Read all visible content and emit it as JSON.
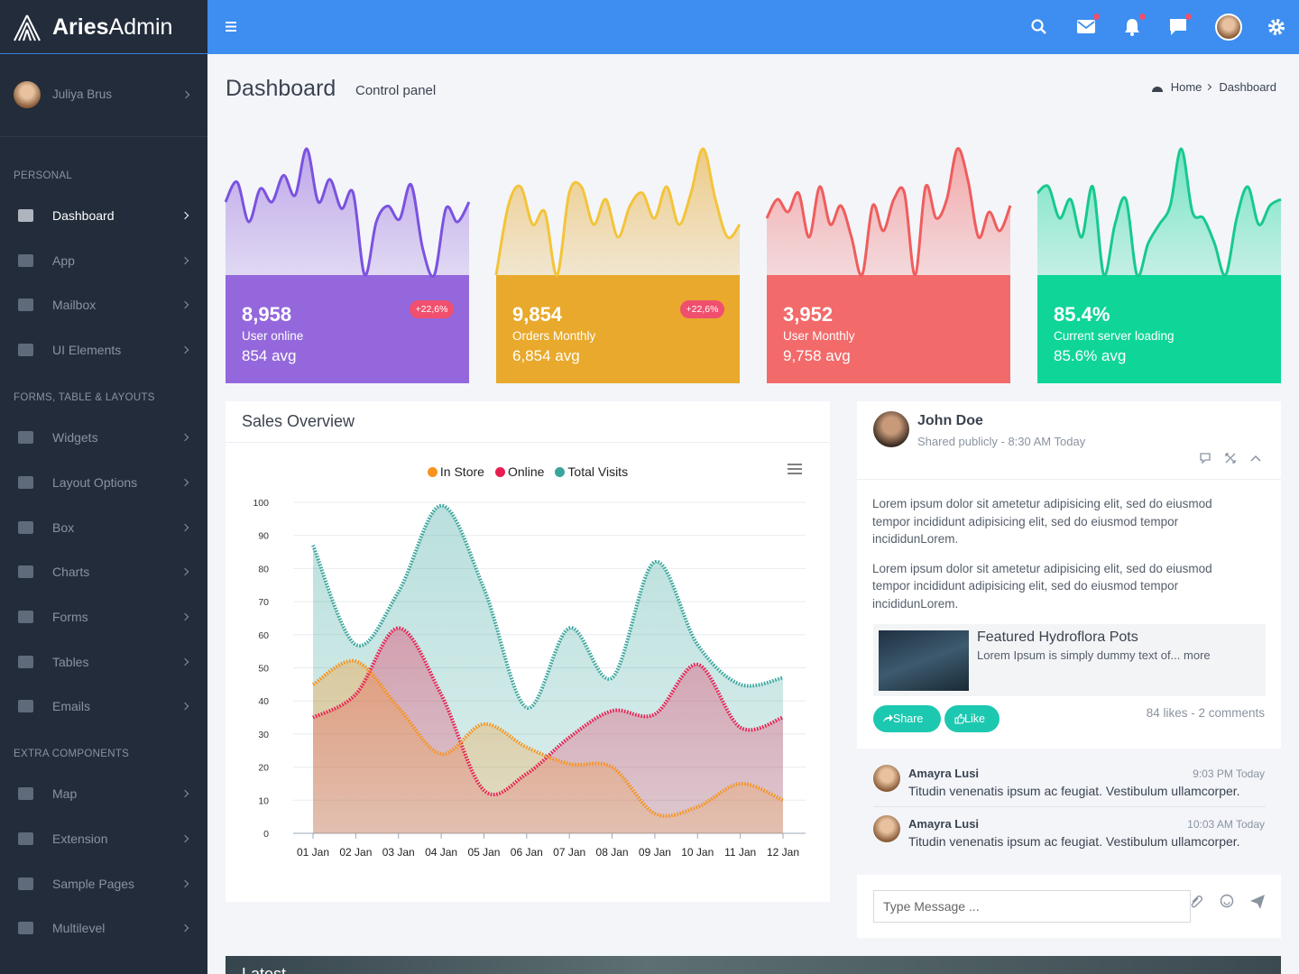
{
  "brand": {
    "bold": "Aries",
    "light": "Admin"
  },
  "user": {
    "name": "Juliya Brus"
  },
  "sidebar": {
    "sections": [
      {
        "heading": "PERSONAL",
        "items": [
          "Dashboard",
          "App",
          "Mailbox",
          "UI Elements"
        ]
      },
      {
        "heading": "FORMS, TABLE & LAYOUTS",
        "items": [
          "Widgets",
          "Layout Options",
          "Box",
          "Charts",
          "Forms",
          "Tables",
          "Emails"
        ]
      },
      {
        "heading": "EXTRA COMPONENTS",
        "items": [
          "Map",
          "Extension",
          "Sample Pages",
          "Multilevel"
        ]
      }
    ]
  },
  "page_header": {
    "title": "Dashboard",
    "subtitle": "Control panel",
    "breadcrumb": [
      "Home",
      "Dashboard"
    ]
  },
  "stats": [
    {
      "value": "8,958",
      "label": "User online",
      "avg": "854 avg",
      "badge": "+22,6%",
      "color": "#9468dc",
      "line_color": "#7b52e0",
      "sparkline": [
        55,
        70,
        40,
        65,
        55,
        75,
        60,
        95,
        55,
        72,
        50,
        62,
        0,
        40,
        52,
        42,
        68,
        20,
        0,
        50,
        40,
        55
      ]
    },
    {
      "value": "9,854",
      "label": "Orders Monthly",
      "avg": "6,854 avg",
      "badge": "+22,6%",
      "color": "#e8a92c",
      "line_color": "#f3c43a",
      "sparkline": [
        0,
        55,
        70,
        40,
        50,
        0,
        65,
        70,
        40,
        60,
        30,
        55,
        65,
        45,
        70,
        40,
        65,
        100,
        60,
        30,
        40
      ]
    },
    {
      "value": "3,952",
      "label": "User Monthly",
      "avg": "9,758 avg",
      "badge": null,
      "color": "#f36a6a",
      "line_color": "#ef5d5d",
      "sparkline": [
        45,
        60,
        50,
        65,
        30,
        70,
        40,
        55,
        30,
        0,
        55,
        35,
        60,
        65,
        0,
        70,
        45,
        60,
        100,
        75,
        30,
        50,
        35,
        55
      ]
    },
    {
      "value": "85.4%",
      "label": "Current server loading",
      "avg": "85.6% avg",
      "badge": null,
      "color": "#0fd698",
      "line_color": "#17c98d",
      "sparkline": [
        65,
        70,
        45,
        60,
        30,
        70,
        0,
        40,
        60,
        0,
        25,
        40,
        55,
        100,
        50,
        45,
        25,
        0,
        45,
        70,
        40,
        55,
        60
      ]
    }
  ],
  "chart_data": {
    "type": "line",
    "title": "Sales Overview",
    "categories": [
      "01 Jan",
      "02 Jan",
      "03 Jan",
      "04 Jan",
      "05 Jan",
      "06 Jan",
      "07 Jan",
      "08 Jan",
      "09 Jan",
      "10 Jan",
      "11 Jan",
      "12 Jan"
    ],
    "series": [
      {
        "name": "In Store",
        "color": "#f7931e",
        "values": [
          45,
          52,
          38,
          24,
          33,
          26,
          21,
          20,
          6,
          8,
          15,
          10
        ]
      },
      {
        "name": "Online",
        "color": "#e91e50",
        "values": [
          35,
          42,
          62,
          42,
          13,
          18,
          29,
          37,
          36,
          51,
          32,
          35
        ]
      },
      {
        "name": "Total Visits",
        "color": "#39a59c",
        "values": [
          87,
          57,
          73,
          99,
          74,
          38,
          62,
          47,
          82,
          57,
          45,
          47
        ]
      }
    ],
    "ylim": [
      0,
      100
    ],
    "yticks": [
      0,
      10,
      20,
      30,
      40,
      50,
      60,
      70,
      80,
      90,
      100
    ],
    "grid": true,
    "legend": "top"
  },
  "post": {
    "author": "John Doe",
    "meta": "Shared publicly - 8:30 AM Today",
    "paragraphs": [
      "Lorem ipsum dolor sit ametetur adipisicing elit, sed do eiusmod tempor incididunt adipisicing elit, sed do eiusmod tempor incididunLorem.",
      "Lorem ipsum dolor sit ametetur adipisicing elit, sed do eiusmod tempor incididunt adipisicing elit, sed do eiusmod tempor incididunLorem."
    ],
    "featured": {
      "title": "Featured Hydroflora Pots",
      "text": "Lorem Ipsum is simply dummy text of... more"
    },
    "buttons": [
      "Share",
      "Like"
    ],
    "stats": "84 likes - 2 comments"
  },
  "comments": [
    {
      "name": "Amayra Lusi",
      "time": "9:03 PM Today",
      "text": "Titudin venenatis ipsum ac feugiat. Vestibulum ullamcorper."
    },
    {
      "name": "Amayra Lusi",
      "time": "10:03 AM Today",
      "text": "Titudin venenatis ipsum ac feugiat. Vestibulum ullamcorper."
    }
  ],
  "message_placeholder": "Type Message ...",
  "bottom": {
    "title": "Latest"
  }
}
